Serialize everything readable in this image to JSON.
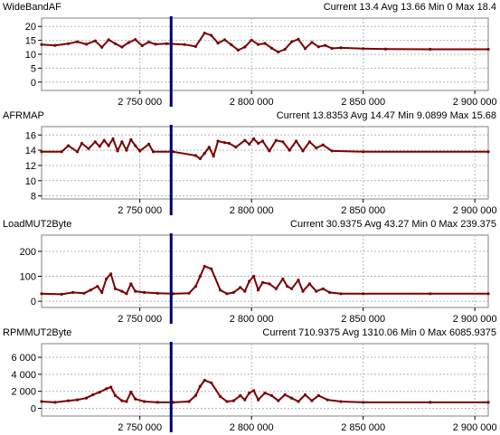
{
  "colors": {
    "trace": "#7a0000",
    "cursor": "#00006e",
    "grid": "#b4b4b4",
    "frame": "#808080"
  },
  "chart_data": [
    {
      "type": "line",
      "name": "WideBandAF",
      "stats": {
        "current_label": "Current",
        "current": "13.4",
        "avg_label": "Avg",
        "avg": "13.66",
        "min_label": "Min",
        "min": "0",
        "max_label": "Max",
        "max": "18.4"
      },
      "ylim": [
        -3,
        23
      ],
      "yticks": [
        0,
        5,
        10,
        15,
        20
      ],
      "ytick_labels": [
        "0",
        "5",
        "10",
        "15",
        "20"
      ],
      "xlim": [
        2706000,
        2906000
      ],
      "xticks": [
        2750000,
        2800000,
        2850000,
        2900000
      ],
      "xtick_labels": [
        "2 750 000",
        "2 800 000",
        "2 850 000",
        "2 900 000"
      ],
      "cursor_x": 2764000,
      "grid": true,
      "series": [
        {
          "x": [
            2706000,
            2712000,
            2718000,
            2722000,
            2726000,
            2730000,
            2733000,
            2736000,
            2739000,
            2742000,
            2745000,
            2748000,
            2751000,
            2754000,
            2757000,
            2762000,
            2770000,
            2775000,
            2779000,
            2782000,
            2785000,
            2788000,
            2791000,
            2794000,
            2797000,
            2800000,
            2803000,
            2806000,
            2809000,
            2812000,
            2815000,
            2818000,
            2821000,
            2824000,
            2827000,
            2830000,
            2833000,
            2836000,
            2840000,
            2850000,
            2860000,
            2880000,
            2906000
          ],
          "values": [
            13.5,
            13.2,
            13.8,
            14.5,
            13.6,
            14.8,
            12.5,
            15.2,
            13.8,
            12.6,
            14.2,
            15.3,
            13.1,
            14.4,
            13.6,
            13.8,
            13.5,
            12.8,
            17.6,
            16.8,
            14.0,
            15.2,
            13.4,
            11.5,
            12.6,
            15.1,
            13.5,
            13.9,
            12.2,
            10.8,
            11.8,
            14.5,
            15.4,
            12.0,
            14.3,
            12.7,
            13.2,
            12.1,
            12.3,
            12.0,
            11.9,
            11.8,
            11.8
          ]
        }
      ]
    },
    {
      "type": "line",
      "name": "AFRMAP",
      "stats": {
        "current_label": "Current",
        "current": "13.8353",
        "avg_label": "Avg",
        "avg": "14.47",
        "min_label": "Min",
        "min": "9.0899",
        "max_label": "Max",
        "max": "15.68"
      },
      "ylim": [
        7.6,
        17.1
      ],
      "yticks": [
        8,
        10,
        12,
        14,
        16
      ],
      "ytick_labels": [
        "8",
        "10",
        "12",
        "14",
        "16"
      ],
      "xlim": [
        2706000,
        2906000
      ],
      "xticks": [
        2750000,
        2800000,
        2850000,
        2900000
      ],
      "xtick_labels": [
        "2 750 000",
        "2 800 000",
        "2 850 000",
        "2 900 000"
      ],
      "cursor_x": 2764000,
      "grid": true,
      "series": [
        {
          "x": [
            2706000,
            2715000,
            2718000,
            2722000,
            2724000,
            2727000,
            2730000,
            2732000,
            2734000,
            2736000,
            2738000,
            2740000,
            2742000,
            2744000,
            2746000,
            2748000,
            2750000,
            2754000,
            2756000,
            2765000,
            2775000,
            2777000,
            2779000,
            2781000,
            2783000,
            2785000,
            2788000,
            2790000,
            2793000,
            2797000,
            2799000,
            2801000,
            2803000,
            2805000,
            2808000,
            2811000,
            2814000,
            2817000,
            2820000,
            2823000,
            2826000,
            2829000,
            2832000,
            2836000,
            2850000,
            2906000
          ],
          "values": [
            13.8,
            13.8,
            14.6,
            13.8,
            14.9,
            14.2,
            15.1,
            14.5,
            15.3,
            14.6,
            15.5,
            13.9,
            15.1,
            14.0,
            15.4,
            14.6,
            13.9,
            14.8,
            13.8,
            13.8,
            13.3,
            12.9,
            13.6,
            14.4,
            13.2,
            15.2,
            15.0,
            14.9,
            14.4,
            15.3,
            14.8,
            15.5,
            14.9,
            15.2,
            13.9,
            15.3,
            15.1,
            14.0,
            15.2,
            13.9,
            15.1,
            14.3,
            14.7,
            13.9,
            13.8,
            13.8
          ]
        }
      ]
    },
    {
      "type": "line",
      "name": "LoadMUT2Byte",
      "stats": {
        "current_label": "Current",
        "current": "30.9375",
        "avg_label": "Avg",
        "avg": "43.27",
        "min_label": "Min",
        "min": "0",
        "max_label": "Max",
        "max": "239.375"
      },
      "ylim": [
        -25,
        265
      ],
      "yticks": [
        0,
        100,
        200
      ],
      "ytick_labels": [
        "0",
        "100",
        "200"
      ],
      "xlim": [
        2706000,
        2906000
      ],
      "xticks": [
        2750000,
        2800000,
        2850000,
        2900000
      ],
      "xtick_labels": [
        "2 750 000",
        "2 800 000",
        "2 850 000",
        "2 900 000"
      ],
      "cursor_x": 2764000,
      "grid": true,
      "series": [
        {
          "x": [
            2706000,
            2715000,
            2720000,
            2725000,
            2728000,
            2731000,
            2733000,
            2735000,
            2737000,
            2739000,
            2742000,
            2744000,
            2746000,
            2748000,
            2752000,
            2758000,
            2765000,
            2772000,
            2775000,
            2777000,
            2779000,
            2782000,
            2786000,
            2789000,
            2792000,
            2795000,
            2797000,
            2799000,
            2801000,
            2803000,
            2805000,
            2808000,
            2811000,
            2814000,
            2816000,
            2818000,
            2821000,
            2823000,
            2826000,
            2829000,
            2832000,
            2835000,
            2840000,
            2850000,
            2880000,
            2906000
          ],
          "values": [
            30,
            28,
            35,
            32,
            45,
            60,
            35,
            90,
            110,
            50,
            40,
            30,
            70,
            40,
            35,
            32,
            30,
            32,
            60,
            100,
            140,
            130,
            45,
            30,
            35,
            55,
            40,
            80,
            100,
            45,
            75,
            70,
            50,
            90,
            60,
            50,
            85,
            40,
            70,
            40,
            50,
            35,
            30,
            30,
            30,
            30
          ]
        }
      ]
    },
    {
      "type": "line",
      "name": "RPMMUT2Byte",
      "stats": {
        "current_label": "Current",
        "current": "710.9375",
        "avg_label": "Avg",
        "avg": "1310.06",
        "min_label": "Min",
        "min": "0",
        "max_label": "Max",
        "max": "6085.9375"
      },
      "ylim": [
        -900,
        7600
      ],
      "yticks": [
        0,
        2000,
        4000,
        6000
      ],
      "ytick_labels": [
        "0",
        "2 000",
        "4 000",
        "6 000"
      ],
      "xlim": [
        2706000,
        2906000
      ],
      "xticks": [
        2750000,
        2800000,
        2850000,
        2900000
      ],
      "xtick_labels": [
        "2 750 000",
        "2 800 000",
        "2 850 000",
        "2 900 000"
      ],
      "cursor_x": 2764000,
      "grid": true,
      "series": [
        {
          "x": [
            2706000,
            2712000,
            2718000,
            2722000,
            2726000,
            2729000,
            2732000,
            2735000,
            2737000,
            2739000,
            2742000,
            2744000,
            2746000,
            2748000,
            2752000,
            2758000,
            2765000,
            2772000,
            2775000,
            2777000,
            2779000,
            2782000,
            2786000,
            2789000,
            2792000,
            2795000,
            2797000,
            2799000,
            2801000,
            2803000,
            2806000,
            2809000,
            2812000,
            2815000,
            2818000,
            2821000,
            2824000,
            2827000,
            2830000,
            2834000,
            2840000,
            2850000,
            2880000,
            2906000
          ],
          "values": [
            800,
            700,
            900,
            1000,
            1200,
            1600,
            1900,
            2300,
            2500,
            1500,
            900,
            800,
            1900,
            1100,
            800,
            700,
            700,
            800,
            1500,
            2600,
            3300,
            3000,
            1400,
            800,
            900,
            1500,
            1000,
            1800,
            2100,
            1000,
            1800,
            1500,
            900,
            1600,
            1200,
            800,
            1600,
            900,
            1500,
            1000,
            800,
            700,
            700,
            700
          ]
        }
      ]
    }
  ]
}
